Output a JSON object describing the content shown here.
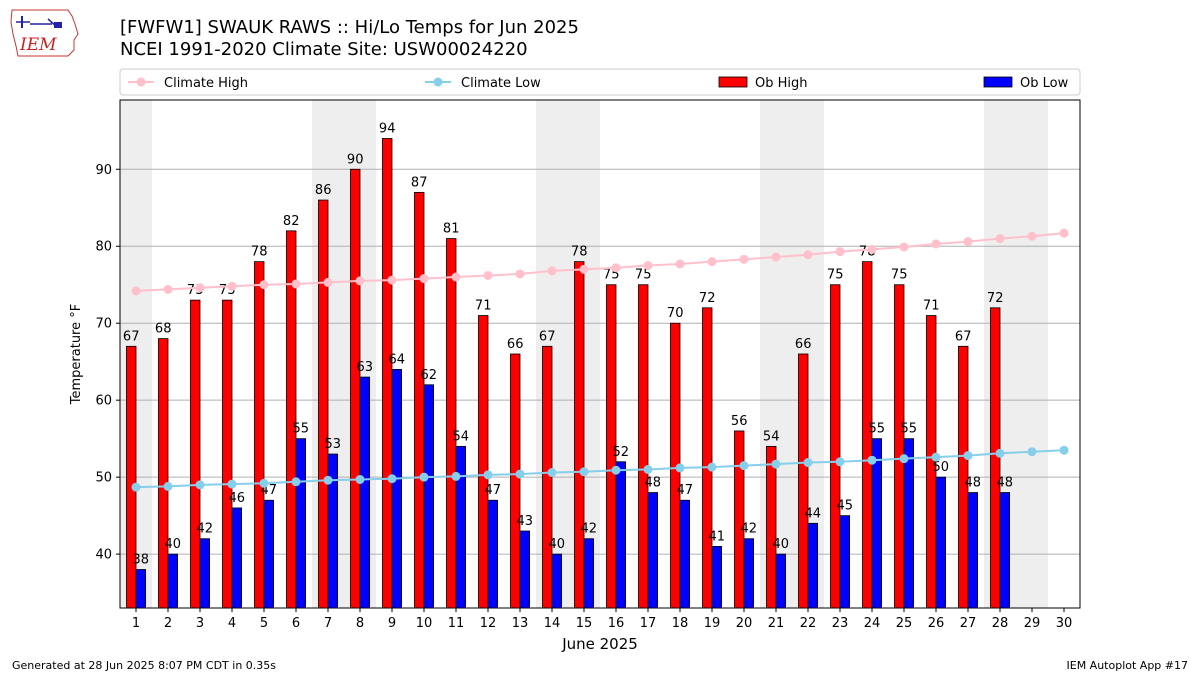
{
  "header": {
    "title_line1": "[FWFW1] SWAUK RAWS :: Hi/Lo Temps for Jun 2025",
    "title_line2": "NCEI 1991-2020 Climate Site: USW00024220",
    "logo_text": "IEM"
  },
  "footer": {
    "generated": "Generated at 28 Jun 2025 8:07 PM CDT in 0.35s",
    "app": "IEM Autoplot App #17"
  },
  "colors": {
    "ob_high": "#ff0000",
    "ob_low": "#0000ff",
    "climate_high": "#ffc0cb",
    "climate_low": "#87ceeb",
    "weekend_band": "#eeeeee",
    "grid": "#b0b0b0"
  },
  "chart_data": {
    "type": "bar",
    "title": "[FWFW1] SWAUK RAWS :: Hi/Lo Temps for Jun 2025",
    "subtitle": "NCEI 1991-2020 Climate Site: USW00024220",
    "xlabel": "June 2025",
    "ylabel": "Temperature °F",
    "ylim": [
      33,
      99
    ],
    "yticks": [
      40,
      50,
      60,
      70,
      80,
      90
    ],
    "grid": "horizontal",
    "legend_position": "top",
    "x": [
      1,
      2,
      3,
      4,
      5,
      6,
      7,
      8,
      9,
      10,
      11,
      12,
      13,
      14,
      15,
      16,
      17,
      18,
      19,
      20,
      21,
      22,
      23,
      24,
      25,
      26,
      27,
      28,
      29,
      30
    ],
    "weekend_days": [
      1,
      7,
      8,
      14,
      15,
      21,
      22,
      28,
      29
    ],
    "series": [
      {
        "name": "Climate High",
        "kind": "line",
        "values": [
          74.2,
          74.4,
          74.6,
          74.8,
          75.0,
          75.1,
          75.3,
          75.5,
          75.6,
          75.8,
          76.0,
          76.2,
          76.4,
          76.8,
          77.0,
          77.2,
          77.5,
          77.7,
          78.0,
          78.3,
          78.6,
          78.9,
          79.3,
          79.6,
          79.9,
          80.3,
          80.6,
          81.0,
          81.3,
          81.7
        ]
      },
      {
        "name": "Climate Low",
        "kind": "line",
        "values": [
          48.7,
          48.8,
          49.0,
          49.1,
          49.2,
          49.4,
          49.6,
          49.7,
          49.8,
          50.0,
          50.1,
          50.3,
          50.4,
          50.6,
          50.7,
          50.9,
          51.0,
          51.2,
          51.3,
          51.5,
          51.7,
          51.9,
          52.0,
          52.2,
          52.4,
          52.6,
          52.8,
          53.1,
          53.3,
          53.5
        ]
      },
      {
        "name": "Ob High",
        "kind": "bar",
        "values": [
          67,
          68,
          73,
          73,
          78,
          82,
          86,
          90,
          94,
          87,
          81,
          71,
          66,
          67,
          78,
          75,
          75,
          70,
          72,
          56,
          54,
          66,
          75,
          78,
          75,
          71,
          67,
          72,
          null,
          null
        ]
      },
      {
        "name": "Ob Low",
        "kind": "bar",
        "values": [
          38,
          40,
          42,
          46,
          47,
          55,
          53,
          63,
          64,
          62,
          54,
          47,
          43,
          40,
          42,
          52,
          48,
          47,
          41,
          42,
          40,
          44,
          45,
          55,
          55,
          50,
          48,
          48,
          null,
          null
        ]
      }
    ]
  }
}
